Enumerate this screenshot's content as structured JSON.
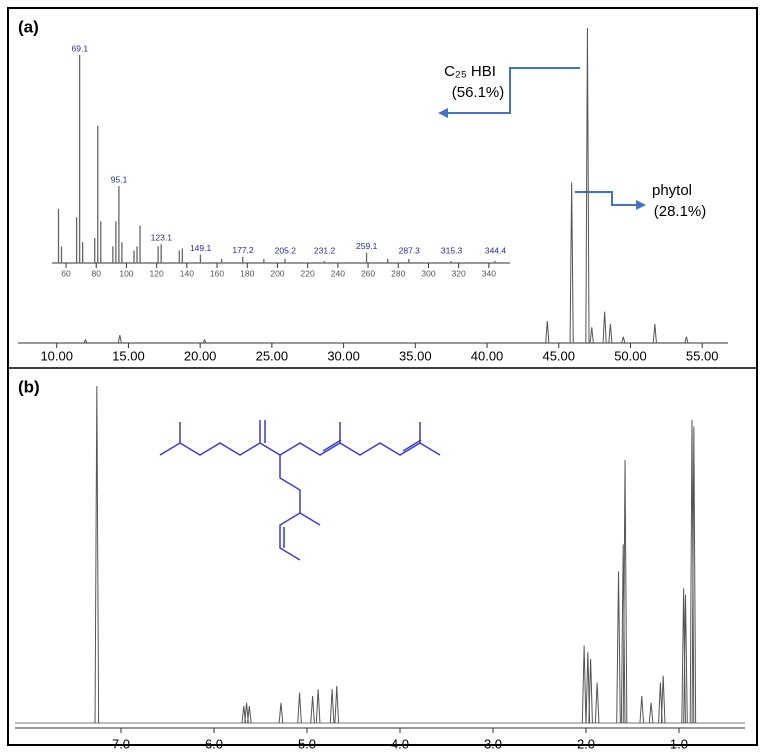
{
  "chart_data": [
    {
      "type": "spectrum",
      "panel_label": "(a)",
      "color": "#555555",
      "xlim": [
        7.3,
        56.8
      ],
      "ylim": [
        0,
        100
      ],
      "xticks": [
        {
          "value": 10,
          "label": "10.00"
        },
        {
          "value": 15,
          "label": "15.00"
        },
        {
          "value": 20,
          "label": "20.00"
        },
        {
          "value": 25,
          "label": "25.00"
        },
        {
          "value": 30,
          "label": "30.00"
        },
        {
          "value": 35,
          "label": "35.00"
        },
        {
          "value": 40,
          "label": "40.00"
        },
        {
          "value": 45,
          "label": "45.00"
        },
        {
          "value": 50,
          "label": "50.00"
        },
        {
          "value": 55,
          "label": "55.00"
        }
      ],
      "x": [
        12.0,
        14.4,
        20.3,
        44.2,
        45.9,
        47.0,
        47.3,
        48.2,
        48.6,
        49.5,
        51.7,
        53.9
      ],
      "values": [
        1,
        2.5,
        1,
        7,
        51,
        100,
        5,
        10,
        6,
        2,
        6,
        2
      ],
      "annotations": [
        {
          "text": "C₂₅ HBI",
          "percent": "(56.1%)"
        },
        {
          "text": "phytol",
          "percent": "(28.1%)"
        }
      ]
    },
    {
      "type": "bar",
      "color": "#666666",
      "xlim": [
        50.7,
        354
      ],
      "ylim": [
        0,
        100
      ],
      "xticks": [
        60,
        80,
        100,
        120,
        140,
        160,
        180,
        200,
        220,
        240,
        260,
        280,
        300,
        320,
        340
      ],
      "x": [
        55,
        57,
        67,
        69,
        71,
        79,
        81,
        83,
        91,
        93,
        95,
        97,
        105,
        107,
        109,
        121,
        123,
        135,
        137,
        149,
        163,
        177,
        191,
        205,
        231,
        259,
        273,
        287,
        315,
        344
      ],
      "values": [
        26,
        8,
        22,
        100,
        10,
        12,
        66,
        20,
        8,
        20,
        37,
        10,
        6,
        8,
        18,
        8,
        9,
        6,
        7,
        4,
        2,
        3,
        2,
        2,
        1,
        5,
        2,
        2,
        1,
        1
      ],
      "peak_labels": [
        69.1,
        95.1,
        123.1,
        149.1,
        177.2,
        205.2,
        231.2,
        259.1,
        287.3,
        315.3,
        344.4
      ]
    },
    {
      "type": "spectrum",
      "panel_label": "(b)",
      "color": "#555555",
      "xlim": [
        8.14,
        0.29
      ],
      "ylim": [
        0,
        100
      ],
      "xticks": [
        {
          "value": 7,
          "label": "7.0"
        },
        {
          "value": 6,
          "label": "6.0"
        },
        {
          "value": 5,
          "label": "5.0"
        },
        {
          "value": 4,
          "label": "4.0"
        },
        {
          "value": 3,
          "label": "3.0"
        },
        {
          "value": 2,
          "label": "2.0"
        },
        {
          "value": 1,
          "label": "1.0"
        }
      ],
      "x": [
        7.26,
        5.68,
        5.65,
        5.62,
        5.28,
        5.08,
        4.94,
        4.88,
        4.73,
        4.68,
        2.02,
        1.98,
        1.95,
        1.88,
        1.65,
        1.6,
        1.58,
        1.4,
        1.3,
        1.2,
        1.17,
        0.95,
        0.93,
        0.86,
        0.84
      ],
      "values": [
        100,
        5,
        6,
        5,
        6,
        9,
        8,
        10,
        10,
        11,
        23,
        21,
        19,
        12,
        45,
        53,
        78,
        8,
        6,
        12,
        14,
        40,
        38,
        90,
        88
      ]
    }
  ]
}
